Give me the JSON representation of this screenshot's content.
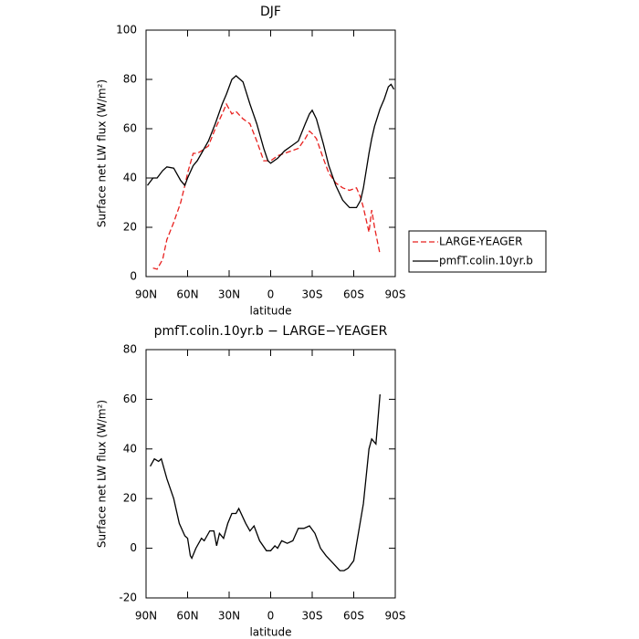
{
  "chart_data": [
    {
      "type": "line",
      "title": "DJF",
      "xlabel": "latitude",
      "ylabel": "Surface net LW flux (W/m²)",
      "xlim": [
        90,
        -90
      ],
      "xticks": [
        {
          "value": 90,
          "label": "90N"
        },
        {
          "value": 60,
          "label": "60N"
        },
        {
          "value": 30,
          "label": "30N"
        },
        0,
        {
          "value": -30,
          "label": "30S"
        },
        {
          "value": -60,
          "label": "60S"
        },
        {
          "value": -90,
          "label": "90S"
        }
      ],
      "ylim": [
        0,
        100
      ],
      "yticks": [
        0,
        20,
        40,
        60,
        80,
        100
      ],
      "legend": "right",
      "x": [
        89,
        85,
        82,
        78,
        75,
        70,
        65,
        62,
        60,
        56,
        53,
        50,
        45,
        40,
        35,
        32,
        28,
        25,
        20,
        15,
        10,
        5,
        2,
        0,
        -5,
        -10,
        -15,
        -20,
        -25,
        -28,
        -30,
        -33,
        -38,
        -42,
        -47,
        -52,
        -57,
        -62,
        -65,
        -67,
        -71,
        -73,
        -75,
        -79,
        -82,
        -85,
        -87,
        -89
      ],
      "series": [
        {
          "name": "LARGE-YEAGER",
          "color": "#e8201e",
          "dash": true,
          "values": [
            null,
            3.5,
            3,
            7,
            15,
            22,
            30,
            37,
            42,
            50,
            50,
            51,
            53,
            60,
            66,
            70,
            66,
            67,
            64,
            62,
            55,
            47,
            47,
            47,
            49,
            50,
            51,
            52,
            56,
            59,
            58,
            56,
            48,
            42,
            38,
            36,
            35,
            36,
            32,
            28,
            18,
            27,
            20,
            9,
            null,
            null,
            null,
            null
          ]
        },
        {
          "name": "pmfT.colin.10yr.b",
          "color": "#000000",
          "dash": false,
          "values": [
            37,
            40,
            40,
            43,
            44.5,
            44,
            39,
            37,
            40,
            45,
            47,
            50,
            55,
            62,
            70,
            74,
            80,
            81.5,
            79,
            70,
            62,
            52,
            47,
            46,
            48,
            51,
            53,
            55,
            62,
            66,
            67.5,
            64,
            54,
            45,
            37,
            31,
            28,
            28,
            31,
            36,
            50,
            56,
            61,
            68,
            72,
            77,
            78,
            76
          ]
        }
      ]
    },
    {
      "type": "line",
      "title": "pmfT.colin.10yr.b − LARGE−YEAGER",
      "xlabel": "latitude",
      "ylabel": "Surface net LW flux (W/m²)",
      "xlim": [
        90,
        -90
      ],
      "xticks": [
        {
          "value": 90,
          "label": "90N"
        },
        {
          "value": 60,
          "label": "60N"
        },
        {
          "value": 30,
          "label": "30N"
        },
        0,
        {
          "value": -30,
          "label": "30S"
        },
        {
          "value": -60,
          "label": "60S"
        },
        {
          "value": -90,
          "label": "90S"
        }
      ],
      "ylim": [
        -20,
        80
      ],
      "yticks": [
        -20,
        0,
        20,
        40,
        60,
        80
      ],
      "x": [
        87,
        84,
        81,
        79,
        75,
        70,
        66,
        62,
        60,
        58,
        57,
        54,
        50,
        48,
        44,
        41,
        39,
        37,
        34,
        31,
        28,
        25,
        23,
        18,
        15,
        12,
        8,
        3,
        0,
        -3,
        -5,
        -8,
        -12,
        -16,
        -20,
        -24,
        -28,
        -32,
        -36,
        -40,
        -45,
        -50,
        -53,
        -56,
        -60,
        -67,
        -71,
        -73,
        -76,
        -79
      ],
      "series": [
        {
          "color": "#000000",
          "dash": false,
          "values": [
            33,
            36,
            35,
            36,
            28,
            20,
            10,
            5,
            4,
            -3,
            -4,
            0,
            4,
            3,
            7,
            7,
            1,
            6,
            4,
            10,
            14,
            14,
            16,
            10,
            7,
            9,
            3,
            -1,
            -1,
            1,
            0,
            3,
            2,
            3,
            8,
            8,
            9,
            6,
            0,
            -3,
            -6,
            -9,
            -9,
            -8,
            -5,
            18,
            40,
            44,
            42,
            62
          ]
        }
      ]
    }
  ]
}
